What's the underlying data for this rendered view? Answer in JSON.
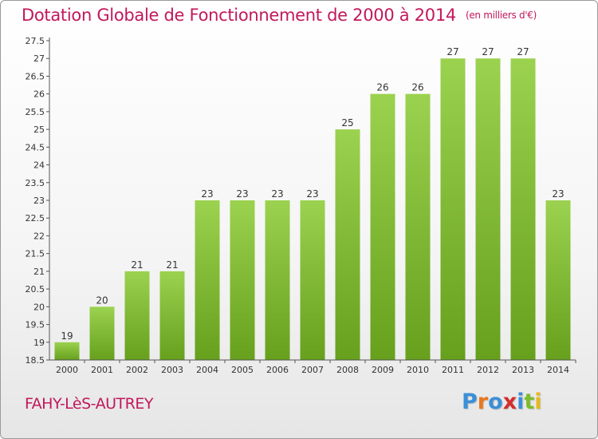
{
  "header": {
    "title": "Dotation Globale de Fonctionnement de 2000 à 2014",
    "unit": "(en milliers d'€)"
  },
  "footer": {
    "commune": "FAHY-LèS-AUTREY",
    "logo": "Proxiti"
  },
  "colors": {
    "title": "#c2185b",
    "bar_light": "#9bd24f",
    "bar_dark": "#66a01c",
    "axis": "#555555"
  },
  "chart_data": {
    "type": "bar",
    "categories": [
      "2000",
      "2001",
      "2002",
      "2003",
      "2004",
      "2005",
      "2006",
      "2007",
      "2008",
      "2009",
      "2010",
      "2011",
      "2012",
      "2013",
      "2014"
    ],
    "values": [
      19,
      20,
      21,
      21,
      23,
      23,
      23,
      23,
      25,
      26,
      26,
      27,
      27,
      27,
      23
    ],
    "data_labels": [
      "19",
      "20",
      "21",
      "21",
      "23",
      "23",
      "23",
      "23",
      "25",
      "26",
      "26",
      "27",
      "27",
      "27",
      "23"
    ],
    "title": "Dotation Globale de Fonctionnement de 2000 à 2014",
    "ylabel": "",
    "xlabel": "",
    "ylim": [
      18.5,
      27.5
    ],
    "yticks": [
      18.5,
      19,
      19.5,
      20,
      20.5,
      21,
      21.5,
      22,
      22.5,
      23,
      23.5,
      24,
      24.5,
      25,
      25.5,
      26,
      26.5,
      27,
      27.5
    ],
    "ytick_labels": [
      "18.5",
      "19",
      "19.5",
      "20",
      "20.5",
      "21",
      "21.5",
      "22",
      "22.5",
      "23",
      "23.5",
      "24",
      "24.5",
      "25",
      "25.5",
      "26",
      "26.5",
      "27",
      "27.5"
    ],
    "grid": false
  }
}
